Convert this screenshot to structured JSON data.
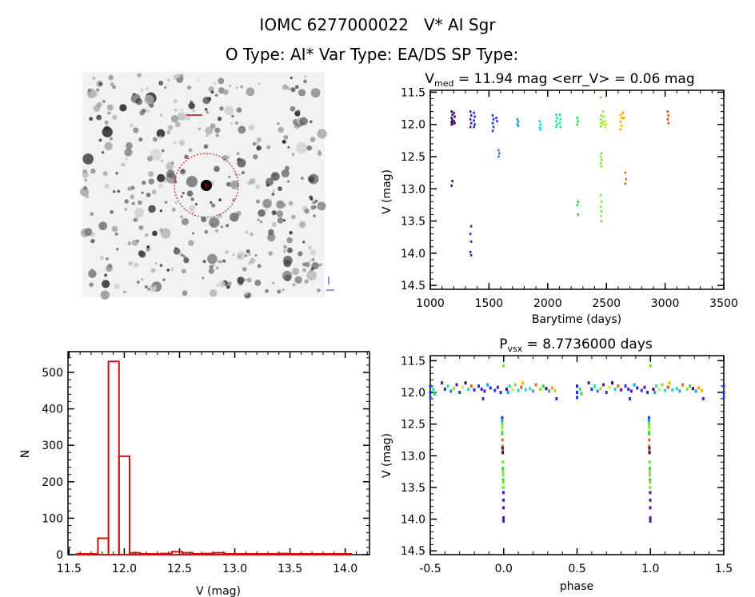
{
  "header": {
    "line1": "IOMC 6277000022   V* AI Sgr",
    "line2": "O Type: AI*  Var Type: EA/DS  SP Type:"
  },
  "colors": {
    "axis": "#000000",
    "histogram": "#d01010",
    "circle": "#c00000"
  },
  "chart_data": [
    {
      "id": "lightcurve",
      "type": "scatter",
      "title_main": "V",
      "title_sub": "med",
      "title_rest": " = 11.94 mag <err_V> = 0.06 mag",
      "xlabel": "Barytime (days)",
      "ylabel": "V (mag)",
      "xlim": [
        1000,
        3500
      ],
      "ylim": [
        11.47,
        14.56
      ],
      "y_inverted": true,
      "xticks": [
        "1000",
        "1500",
        "2000",
        "2500",
        "3000",
        "3500"
      ],
      "yticks": [
        "11.5",
        "12.0",
        "12.5",
        "13.0",
        "13.5",
        "14.0",
        "14.5"
      ],
      "clusters": [
        {
          "t": 1180,
          "color": "#3c0a6e",
          "V": [
            11.8,
            11.85,
            11.9,
            11.93,
            11.96,
            11.99,
            12.0,
            12.88,
            12.95
          ]
        },
        {
          "t": 1200,
          "color": "#3c0a6e",
          "V": [
            11.82,
            11.88,
            11.95,
            11.98
          ]
        },
        {
          "t": 1340,
          "color": "#5a1aa8",
          "V": [
            11.8,
            11.86,
            11.92,
            11.98,
            12.04,
            13.58,
            13.7,
            13.82,
            13.98,
            14.03
          ]
        },
        {
          "t": 1370,
          "color": "#2a2ad0",
          "V": [
            11.82,
            11.88,
            11.94,
            12.0,
            12.04
          ]
        },
        {
          "t": 1530,
          "color": "#1e3cdc",
          "V": [
            11.86,
            11.92,
            11.98,
            12.04,
            12.1
          ]
        },
        {
          "t": 1560,
          "color": "#1e3cdc",
          "V": [
            11.9,
            11.95
          ]
        },
        {
          "t": 1580,
          "color": "#2a7fd6",
          "V": [
            12.4,
            12.45,
            12.5
          ]
        },
        {
          "t": 1740,
          "color": "#1ea0e6",
          "V": [
            11.92,
            11.96,
            12.0,
            12.02
          ]
        },
        {
          "t": 1930,
          "color": "#20d0f0",
          "V": [
            11.95,
            12.0,
            12.05,
            12.08
          ]
        },
        {
          "t": 2070,
          "color": "#1ee8a0",
          "V": [
            11.85,
            11.9,
            11.95,
            12.0,
            12.04
          ]
        },
        {
          "t": 2100,
          "color": "#1ee890",
          "V": [
            11.85,
            11.92,
            11.98,
            12.04
          ]
        },
        {
          "t": 2250,
          "color": "#2ad84a",
          "V": [
            11.9,
            11.95,
            12.0,
            13.2,
            13.25,
            13.4
          ]
        },
        {
          "t": 2450,
          "color": "#7ce832",
          "V": [
            11.58,
            11.86,
            11.92,
            11.98,
            12.03,
            12.45,
            12.5,
            12.55,
            12.6,
            12.65,
            13.1,
            13.2,
            13.28,
            13.35,
            13.42,
            13.5
          ]
        },
        {
          "t": 2470,
          "color": "#a8e83c",
          "V": [
            11.8,
            11.88,
            11.95,
            12.0
          ]
        },
        {
          "t": 2490,
          "color": "#d0e850",
          "V": [
            11.95,
            12.0,
            12.05
          ]
        },
        {
          "t": 2620,
          "color": "#f0b800",
          "V": [
            11.85,
            11.9,
            11.96,
            12.02,
            12.08
          ]
        },
        {
          "t": 2640,
          "color": "#f0a000",
          "V": [
            11.82,
            11.9
          ]
        },
        {
          "t": 2660,
          "color": "#e07020",
          "V": [
            12.75,
            12.85,
            12.92
          ]
        },
        {
          "t": 3020,
          "color": "#e05a14",
          "V": [
            11.8,
            11.86,
            11.92,
            11.98
          ]
        }
      ]
    },
    {
      "id": "histogram",
      "type": "bar",
      "xlabel": "V (mag)",
      "ylabel": "N",
      "xlim": [
        11.49,
        14.22
      ],
      "ylim": [
        0,
        557
      ],
      "bin_start": 11.57,
      "bin_width": 0.0955,
      "values": [
        0,
        0,
        45,
        530,
        270,
        5,
        0,
        0,
        3,
        8,
        5,
        2,
        3,
        5,
        1,
        1,
        2,
        2,
        1,
        3,
        1,
        1,
        0,
        1,
        0,
        1
      ],
      "xticks": [
        "11.5",
        "12.0",
        "12.5",
        "13.0",
        "13.5",
        "14.0"
      ],
      "yticks": [
        "0",
        "100",
        "200",
        "300",
        "400",
        "500"
      ]
    },
    {
      "id": "phased",
      "type": "scatter",
      "title_main": "P",
      "title_sub": "vsx",
      "title_rest": " = 8.7736000 days",
      "period_days": 8.7736,
      "xlabel": "phase",
      "ylabel": "V (mag)",
      "xlim": [
        -0.5,
        1.5
      ],
      "ylim": [
        11.42,
        14.56
      ],
      "y_inverted": true,
      "xticks": [
        "-0.5",
        "0.0",
        "0.5",
        "1.0",
        "1.5"
      ],
      "yticks": [
        "11.5",
        "12.0",
        "12.5",
        "13.0",
        "13.5",
        "14.0",
        "14.5"
      ],
      "points": [
        [
          0.0,
          11.58,
          "#7ce832"
        ],
        [
          0.5,
          11.9,
          "#2a2ad0"
        ],
        [
          0.5,
          12.0,
          "#2a2ad0"
        ],
        [
          0.52,
          11.95,
          "#1ee8a0"
        ],
        [
          0.53,
          12.02,
          "#2ad84a"
        ],
        [
          0.02,
          11.95,
          "#3c0a6e"
        ],
        [
          0.03,
          12.0,
          "#1ea0e6"
        ],
        [
          0.04,
          11.9,
          "#1ee8a0"
        ],
        [
          0.06,
          11.96,
          "#d0e850"
        ],
        [
          0.08,
          11.88,
          "#7ce832"
        ],
        [
          0.1,
          11.97,
          "#20d0f0"
        ],
        [
          0.12,
          11.92,
          "#e05a14"
        ],
        [
          0.13,
          11.85,
          "#f0b800"
        ],
        [
          0.15,
          11.96,
          "#20d0f0"
        ],
        [
          0.18,
          11.94,
          "#1ee8a0"
        ],
        [
          0.2,
          11.98,
          "#1ea0e6"
        ],
        [
          0.22,
          11.88,
          "#e07020"
        ],
        [
          0.25,
          11.95,
          "#7ce832"
        ],
        [
          0.27,
          11.9,
          "#2ad84a"
        ],
        [
          0.29,
          11.94,
          "#3c0a6e"
        ],
        [
          0.31,
          11.98,
          "#1ea0e6"
        ],
        [
          0.33,
          11.93,
          "#f0a000"
        ],
        [
          0.35,
          11.97,
          "#f0b800"
        ],
        [
          0.58,
          11.85,
          "#5a1aa8"
        ],
        [
          0.6,
          11.95,
          "#1e3cdc"
        ],
        [
          0.62,
          11.9,
          "#1ee8a0"
        ],
        [
          0.64,
          11.98,
          "#2a7fd6"
        ],
        [
          0.66,
          11.94,
          "#7ce832"
        ],
        [
          0.68,
          11.88,
          "#5a1aa8"
        ],
        [
          0.7,
          12.0,
          "#1e3cdc"
        ],
        [
          0.72,
          11.92,
          "#d0e850"
        ],
        [
          0.74,
          11.85,
          "#3c0a6e"
        ],
        [
          0.76,
          11.95,
          "#20d0f0"
        ],
        [
          0.78,
          11.9,
          "#e07020"
        ],
        [
          0.8,
          11.96,
          "#5a1aa8"
        ],
        [
          0.83,
          11.9,
          "#1e3cdc"
        ],
        [
          0.85,
          11.95,
          "#2a2ad0"
        ],
        [
          0.87,
          11.98,
          "#5a1aa8"
        ],
        [
          0.89,
          11.88,
          "#1ea0e6"
        ],
        [
          0.91,
          11.93,
          "#2a2ad0"
        ],
        [
          0.94,
          11.97,
          "#1e3cdc"
        ],
        [
          0.96,
          11.92,
          "#5a1aa8"
        ],
        [
          0.98,
          12.0,
          "#2a2ad0"
        ],
        [
          0.36,
          12.1,
          "#2a2ad0"
        ],
        [
          0.5,
          12.08,
          "#1e3cdc"
        ],
        [
          0.86,
          12.1,
          "#2a2ad0"
        ],
        [
          0.99,
          12.4,
          "#1e3cdc"
        ],
        [
          0.99,
          12.45,
          "#1ea0e6"
        ],
        [
          0.99,
          12.5,
          "#7ce832"
        ],
        [
          0.99,
          12.55,
          "#7ce832"
        ],
        [
          0.99,
          12.62,
          "#7ce832"
        ],
        [
          0.99,
          12.65,
          "#2ad84a"
        ],
        [
          0.992,
          12.75,
          "#e07020"
        ],
        [
          0.992,
          12.85,
          "#e07020"
        ],
        [
          0.993,
          12.88,
          "#3c0a6e"
        ],
        [
          0.993,
          12.92,
          "#e07020"
        ],
        [
          0.994,
          12.95,
          "#3c0a6e"
        ],
        [
          0.995,
          13.1,
          "#7ce832"
        ],
        [
          0.995,
          13.2,
          "#2ad84a"
        ],
        [
          0.996,
          13.25,
          "#7ce832"
        ],
        [
          0.996,
          13.3,
          "#7ce832"
        ],
        [
          0.997,
          13.38,
          "#2ad84a"
        ],
        [
          0.997,
          13.42,
          "#7ce832"
        ],
        [
          0.998,
          13.5,
          "#7ce832"
        ],
        [
          0.998,
          13.58,
          "#5a1aa8"
        ],
        [
          0.999,
          13.7,
          "#5a1aa8"
        ],
        [
          0.999,
          13.82,
          "#5a1aa8"
        ],
        [
          0.999,
          13.98,
          "#5a1aa8"
        ],
        [
          0.999,
          14.03,
          "#5a1aa8"
        ]
      ]
    }
  ]
}
